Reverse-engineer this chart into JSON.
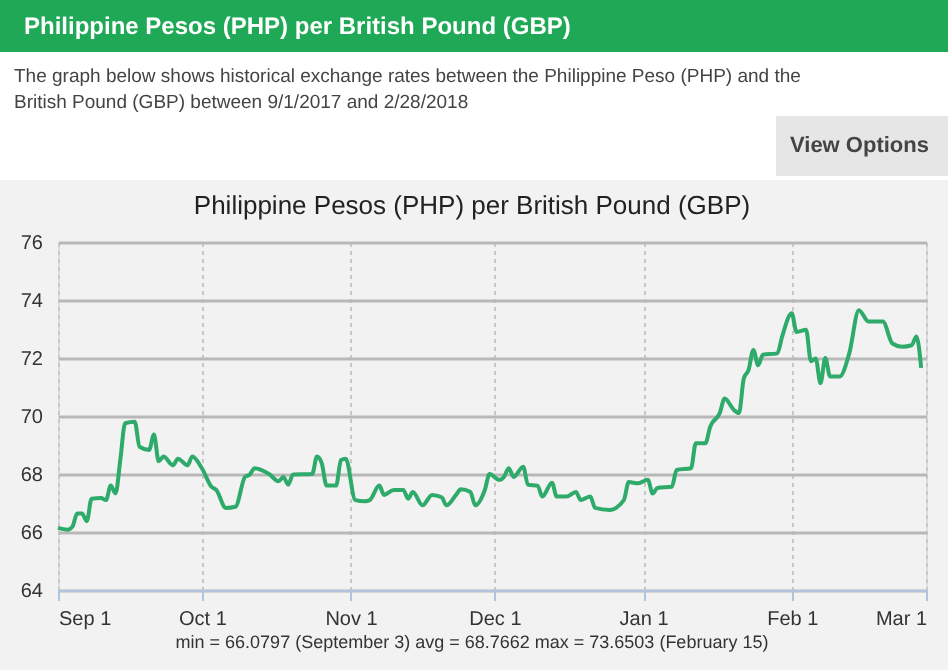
{
  "chart_data": {
    "type": "line",
    "title": "Philippine Pesos (PHP) per British Pound (GBP)",
    "subtitle": "The graph below shows historical exchange rates between the Philippine Peso (PHP) and the British Pound (GBP) between 9/1/2017 and 2/28/2018",
    "annotations": [
      "View Options",
      "Philippine Pesos (PHP) per British Pound (GBP)",
      "min = 66.0797 (September 3) avg = 68.7662 max = 73.6503 (February 15)"
    ],
    "x": [
      "2017-09-01",
      "2017-09-03",
      "2017-09-04",
      "2017-09-05",
      "2017-09-06",
      "2017-09-07",
      "2017-09-08",
      "2017-09-10",
      "2017-09-11",
      "2017-09-12",
      "2017-09-13",
      "2017-09-14",
      "2017-09-15",
      "2017-09-17",
      "2017-09-18",
      "2017-09-20",
      "2017-09-21",
      "2017-09-22",
      "2017-09-23",
      "2017-09-25",
      "2017-09-26",
      "2017-09-28",
      "2017-09-29",
      "2017-10-01",
      "2017-10-03",
      "2017-10-04",
      "2017-10-06",
      "2017-10-08",
      "2017-10-10",
      "2017-10-11",
      "2017-10-12",
      "2017-10-15",
      "2017-10-17",
      "2017-10-18",
      "2017-10-19",
      "2017-10-20",
      "2017-10-24",
      "2017-10-25",
      "2017-10-26",
      "2017-10-27",
      "2017-10-29",
      "2017-10-30",
      "2017-10-31",
      "2017-11-02",
      "2017-11-04",
      "2017-11-05",
      "2017-11-07",
      "2017-11-08",
      "2017-11-10",
      "2017-11-12",
      "2017-11-13",
      "2017-11-14",
      "2017-11-16",
      "2017-11-18",
      "2017-11-20",
      "2017-11-21",
      "2017-11-23",
      "2017-11-24",
      "2017-11-26",
      "2017-11-27",
      "2017-11-29",
      "2017-11-30",
      "2017-12-02",
      "2017-12-03",
      "2017-12-04",
      "2017-12-05",
      "2017-12-07",
      "2017-12-08",
      "2017-12-10",
      "2017-12-11",
      "2017-12-13",
      "2017-12-14",
      "2017-12-16",
      "2017-12-18",
      "2017-12-19",
      "2017-12-21",
      "2017-12-22",
      "2017-12-25",
      "2017-12-28",
      "2017-12-29",
      "2017-12-31",
      "2018-01-02",
      "2018-01-03",
      "2018-01-04",
      "2018-01-07",
      "2018-01-08",
      "2018-01-11",
      "2018-01-12",
      "2018-01-14",
      "2018-01-15",
      "2018-01-17",
      "2018-01-18",
      "2018-01-20",
      "2018-01-21",
      "2018-01-22",
      "2018-01-23",
      "2018-01-24",
      "2018-01-25",
      "2018-01-26",
      "2018-01-29",
      "2018-01-30",
      "2018-02-01",
      "2018-02-02",
      "2018-02-04",
      "2018-02-05",
      "2018-02-06",
      "2018-02-07",
      "2018-02-08",
      "2018-02-09",
      "2018-02-11",
      "2018-02-13",
      "2018-02-15",
      "2018-02-17",
      "2018-02-20",
      "2018-02-22",
      "2018-02-24",
      "2018-02-26",
      "2018-02-27",
      "2018-02-28"
    ],
    "series": [
      {
        "color": "#2eaa6a",
        "values": [
          66.14,
          66.08,
          66.18,
          66.64,
          66.64,
          66.37,
          67.15,
          67.17,
          67.1,
          67.6,
          67.33,
          68.5,
          69.75,
          69.8,
          68.94,
          68.83,
          69.36,
          68.44,
          68.6,
          68.3,
          68.53,
          68.3,
          68.6,
          68.2,
          67.56,
          67.45,
          66.83,
          66.87,
          67.9,
          67.98,
          68.2,
          68.0,
          67.75,
          67.9,
          67.63,
          67.98,
          68.0,
          68.6,
          68.37,
          67.6,
          67.6,
          68.48,
          68.53,
          67.1,
          67.06,
          67.1,
          67.6,
          67.28,
          67.45,
          67.45,
          67.15,
          67.38,
          66.92,
          67.28,
          67.2,
          66.92,
          67.28,
          67.47,
          67.38,
          66.92,
          67.45,
          68.0,
          67.8,
          67.9,
          68.2,
          67.9,
          68.25,
          67.63,
          67.6,
          67.22,
          67.7,
          67.22,
          67.22,
          67.38,
          67.1,
          67.22,
          66.83,
          66.76,
          67.1,
          67.72,
          67.68,
          67.8,
          67.33,
          67.52,
          67.56,
          68.14,
          68.2,
          69.06,
          69.06,
          69.63,
          70.1,
          70.6,
          70.2,
          70.1,
          71.29,
          71.59,
          72.28,
          71.75,
          72.11,
          72.16,
          72.74,
          73.54,
          72.9,
          72.97,
          71.89,
          71.98,
          71.13,
          72.0,
          71.36,
          71.36,
          72.16,
          73.65,
          73.26,
          73.26,
          72.5,
          72.39,
          72.44,
          72.74,
          71.66
        ]
      }
    ],
    "xlim": [
      "2017-09-01",
      "2018-03-01"
    ],
    "xticks": [
      {
        "value": "2017-09-01",
        "label": "Sep 1"
      },
      {
        "value": "2017-10-01",
        "label": "Oct 1"
      },
      {
        "value": "2017-11-01",
        "label": "Nov 1"
      },
      {
        "value": "2017-12-01",
        "label": "Dec 1"
      },
      {
        "value": "2018-01-01",
        "label": "Jan 1"
      },
      {
        "value": "2018-02-01",
        "label": "Feb 1"
      },
      {
        "value": "2018-03-01",
        "label": "Mar 1"
      }
    ],
    "ylim": [
      64,
      76
    ],
    "yticks": [
      64,
      66,
      68,
      70,
      72,
      74,
      76
    ],
    "grid": true,
    "legend": false,
    "marker": "none",
    "line_style": "solid"
  }
}
